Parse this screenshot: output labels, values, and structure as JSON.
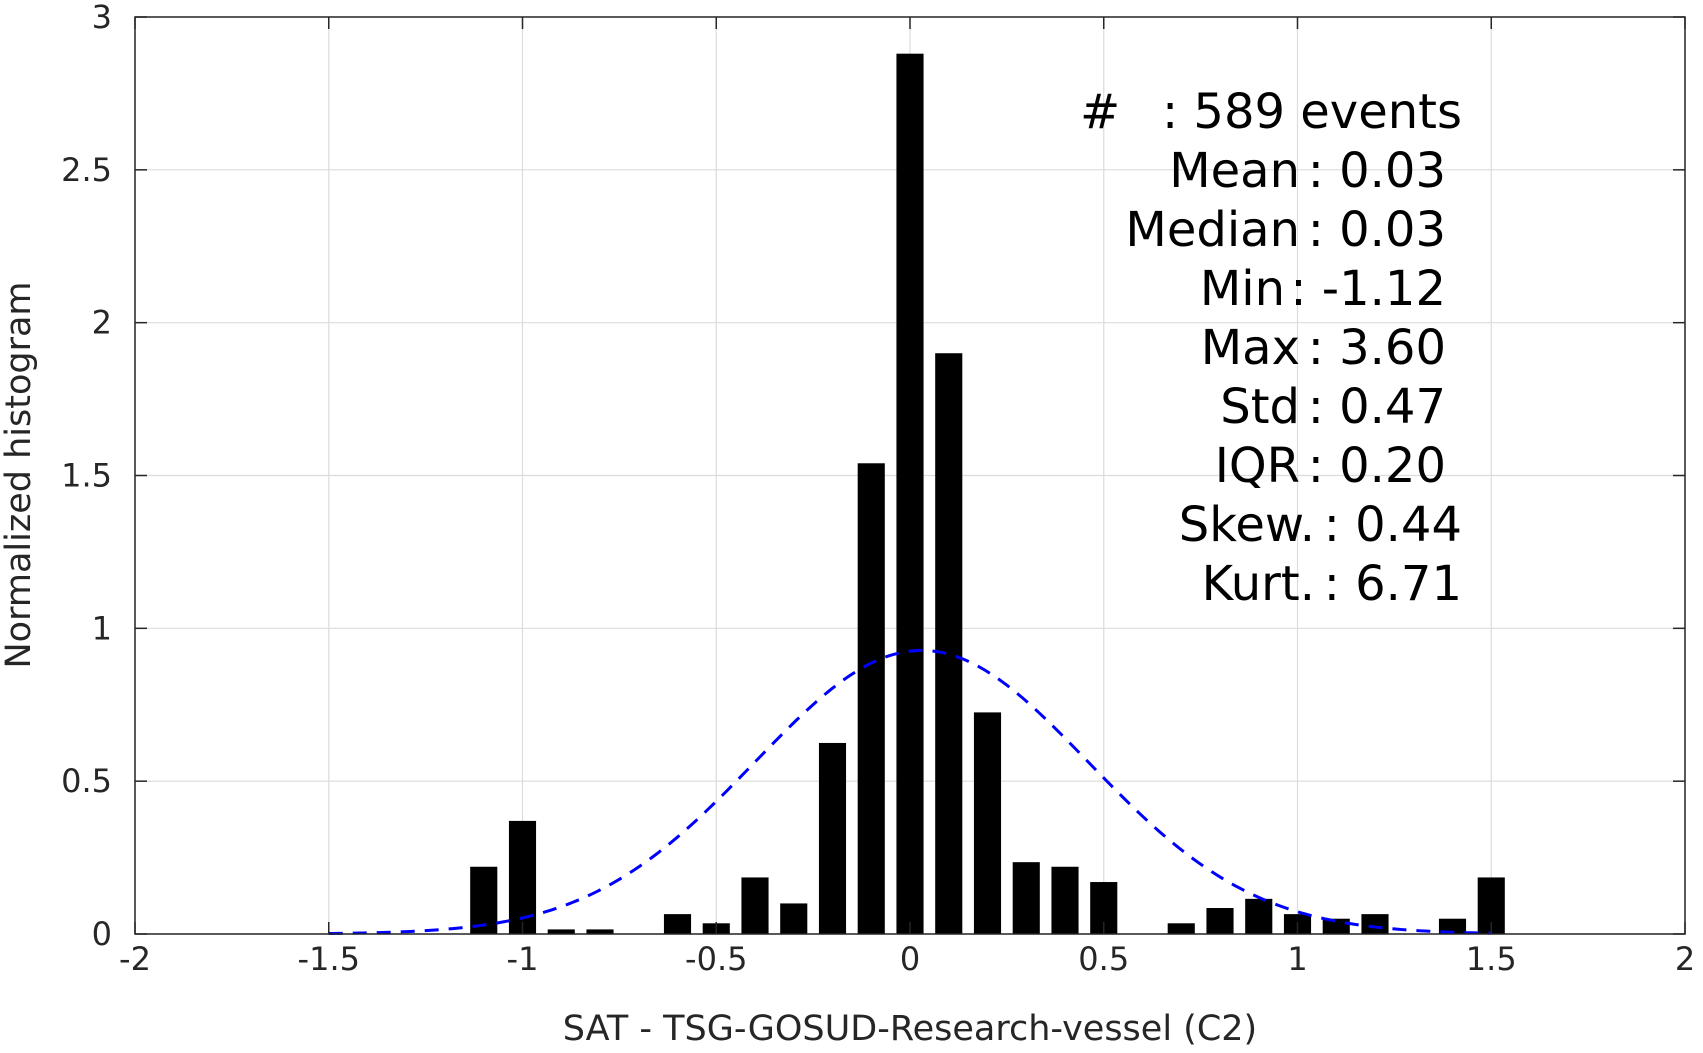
{
  "chart_data": {
    "type": "bar",
    "xlabel": "SAT - TSG-GOSUD-Research-vessel (C2)",
    "ylabel": "Normalized histogram",
    "xlim": [
      -2,
      2
    ],
    "ylim": [
      0,
      3
    ],
    "xticks": [
      -2,
      -1.5,
      -1,
      -0.5,
      0,
      0.5,
      1,
      1.5,
      2
    ],
    "xtick_labels": [
      "-2",
      "-1.5",
      "-1",
      "-0.5",
      "0",
      "0.5",
      "1",
      "1.5",
      "2"
    ],
    "yticks": [
      0,
      0.5,
      1,
      1.5,
      2,
      2.5,
      3
    ],
    "ytick_labels": [
      "0",
      "0.5",
      "1",
      "1.5",
      "2",
      "2.5",
      "3"
    ],
    "grid": true,
    "bar_width": 0.07,
    "bars": {
      "x": [
        -1.1,
        -1.0,
        -0.9,
        -0.8,
        -0.6,
        -0.5,
        -0.4,
        -0.3,
        -0.2,
        -0.1,
        0.0,
        0.1,
        0.2,
        0.3,
        0.4,
        0.5,
        0.7,
        0.8,
        0.9,
        1.0,
        1.1,
        1.2,
        1.4,
        1.5
      ],
      "values": [
        0.22,
        0.37,
        0.015,
        0.015,
        0.065,
        0.035,
        0.185,
        0.1,
        0.625,
        1.54,
        2.88,
        1.9,
        0.725,
        0.235,
        0.22,
        0.17,
        0.035,
        0.085,
        0.115,
        0.065,
        0.05,
        0.065,
        0.05,
        0.185
      ],
      "color": "#000000"
    },
    "fit_curve": {
      "type": "gaussian",
      "mean": 0.03,
      "std": 0.43,
      "x_range": [
        -1.5,
        1.5
      ],
      "color": "#0000ff",
      "style": "dashed"
    },
    "annotations": [
      {
        "label": "#  ",
        "value": ": 589 events"
      },
      {
        "label": "Mean ",
        "value": ": 0.03"
      },
      {
        "label": "Median ",
        "value": ": 0.03"
      },
      {
        "label": "Min ",
        "value": ": -1.12"
      },
      {
        "label": "Max ",
        "value": ": 3.60"
      },
      {
        "label": "Std ",
        "value": ": 0.47"
      },
      {
        "label": "IQR ",
        "value": ": 0.20"
      },
      {
        "label": "Skew. ",
        "value": ": 0.44"
      },
      {
        "label": "Kurt. ",
        "value": ": 6.71"
      }
    ]
  }
}
